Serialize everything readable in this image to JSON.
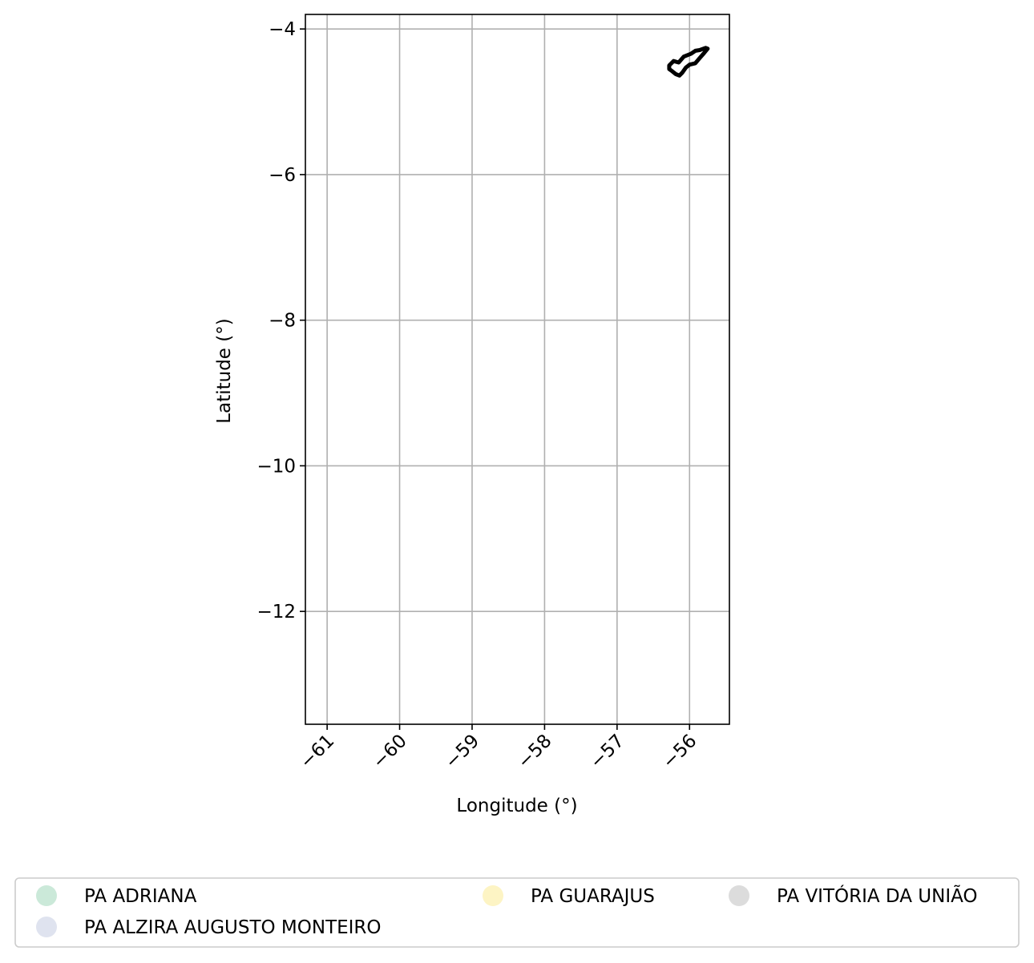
{
  "chart_data": {
    "type": "map",
    "title": "",
    "xlabel": "Longitude (°)",
    "ylabel": "Latitude (°)",
    "xlim": [
      -61.3,
      -55.45
    ],
    "ylim": [
      -13.55,
      -3.8
    ],
    "x_ticks": [
      -61,
      -60,
      -59,
      -58,
      -57,
      -56
    ],
    "y_ticks": [
      -4,
      -6,
      -8,
      -10,
      -12
    ],
    "x_tick_labels": [
      "−61",
      "−60",
      "−59",
      "−58",
      "−57",
      "−56"
    ],
    "y_tick_labels": [
      "−4",
      "−6",
      "−8",
      "−10",
      "−12"
    ],
    "grid": true,
    "boundary": {
      "stroke_color": "#000000",
      "points": [
        [
          -56.28,
          -4.5
        ],
        [
          -56.22,
          -4.44
        ],
        [
          -56.15,
          -4.46
        ],
        [
          -56.08,
          -4.38
        ],
        [
          -55.98,
          -4.34
        ],
        [
          -55.92,
          -4.3
        ],
        [
          -55.86,
          -4.29
        ],
        [
          -55.78,
          -4.26
        ],
        [
          -55.75,
          -4.27
        ],
        [
          -55.8,
          -4.33
        ],
        [
          -55.86,
          -4.4
        ],
        [
          -55.92,
          -4.47
        ],
        [
          -56.0,
          -4.49
        ],
        [
          -56.05,
          -4.53
        ],
        [
          -56.1,
          -4.6
        ],
        [
          -56.14,
          -4.64
        ],
        [
          -56.19,
          -4.62
        ],
        [
          -56.24,
          -4.58
        ],
        [
          -56.28,
          -4.55
        ]
      ]
    },
    "legend": {
      "placement": "bottom-center",
      "columns": 3,
      "entries": [
        {
          "label": "PA ADRIANA",
          "color": "#cbe9d9"
        },
        {
          "label": "PA ALZIRA AUGUSTO MONTEIRO",
          "color": "#dfe3ef"
        },
        {
          "label": "PA GUARAJUS",
          "color": "#fdf4c4"
        },
        {
          "label": "PA VITÓRIA DA UNIÃO",
          "color": "#dcdcdc"
        }
      ]
    }
  }
}
